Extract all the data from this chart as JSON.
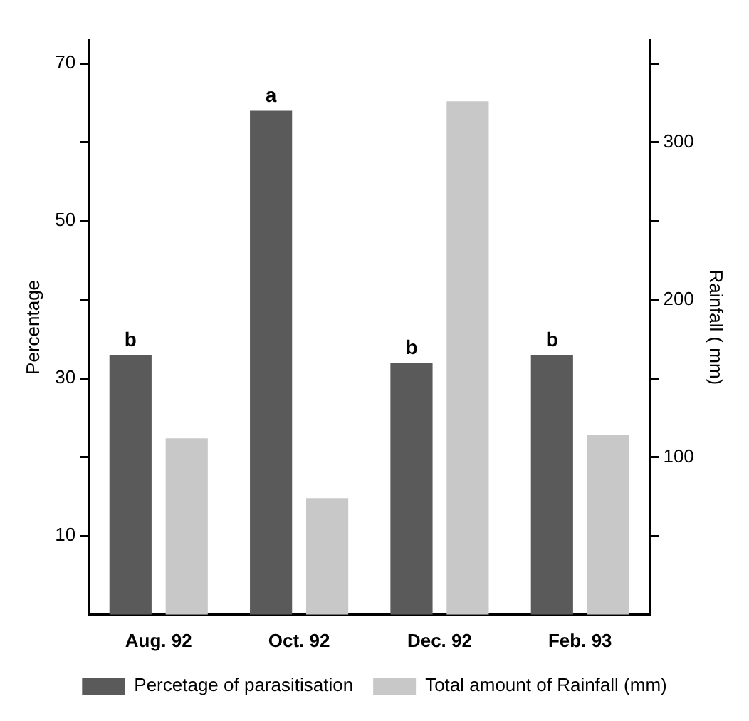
{
  "chart_data": {
    "type": "bar",
    "categories": [
      "Aug. 92",
      "Oct. 92",
      "Dec. 92",
      "Feb. 93"
    ],
    "series": [
      {
        "name": "Percetage of parasitisation",
        "color": "#5a5a5a",
        "values": [
          33,
          64,
          32,
          33
        ],
        "value_labels": [
          "b",
          "a",
          "b",
          "b"
        ]
      },
      {
        "name": "Total amount of Rainfall (mm)",
        "color": "#c8c8c8",
        "values": [
          112,
          74,
          326,
          114
        ],
        "axis": "y2"
      }
    ],
    "ylabel": "Percentage",
    "y2label": "Rainfall ( mm)",
    "ylim": [
      0,
      73
    ],
    "yticks": [
      10,
      {
        "value": 20,
        "label": null
      },
      30,
      {
        "value": 40,
        "label": null
      },
      50,
      {
        "value": 60,
        "label": null
      },
      70
    ],
    "y2lim": [
      0,
      365
    ],
    "y2ticks": [
      {
        "value": 50,
        "label": null
      },
      100,
      {
        "value": 150,
        "label": null
      },
      200,
      {
        "value": 250,
        "label": null
      },
      300,
      {
        "value": 350,
        "label": null
      }
    ],
    "grid": false,
    "legend": "bottom"
  }
}
